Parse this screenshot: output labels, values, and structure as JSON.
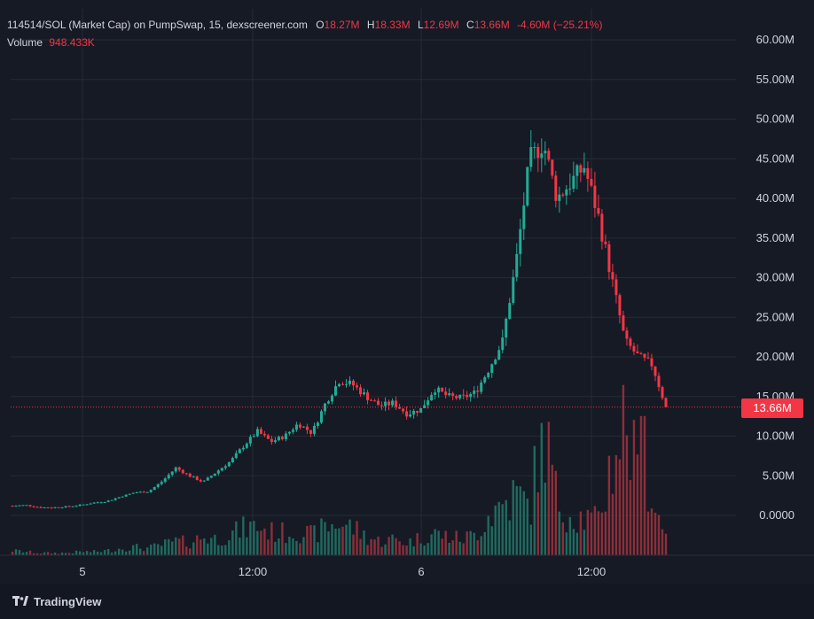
{
  "header": {
    "symbol": "114514/SOL (Market Cap) on PumpSwap, 15, dexscreener.com",
    "open_label": "O",
    "open_value": "18.27M",
    "high_label": "H",
    "high_value": "18.33M",
    "low_label": "L",
    "low_value": "12.69M",
    "close_label": "C",
    "close_value": "13.66M",
    "change": "-4.60M (−25.21%)",
    "volume_label": "Volume",
    "volume_value": "948.433K"
  },
  "last_price_tag": "13.66M",
  "footer": {
    "brand": "TradingView"
  },
  "colors": {
    "background": "#161a25",
    "up": "#22ab94",
    "down": "#f23645",
    "vol_up": "#1f6b60",
    "vol_down": "#8c2f3a",
    "grid": "#262a35",
    "text": "#d1d4dc"
  },
  "chart_data": {
    "type": "candlestick",
    "y_axis_label_position": "right",
    "y_ticks": [
      "60.00M",
      "55.00M",
      "50.00M",
      "45.00M",
      "40.00M",
      "35.00M",
      "30.00M",
      "25.00M",
      "20.00M",
      "15.00M",
      "10.00M",
      "5.00M",
      "0.0000"
    ],
    "y_tick_values": [
      60,
      55,
      50,
      45,
      40,
      35,
      30,
      25,
      20,
      15,
      10,
      5,
      0
    ],
    "y_unit": "M",
    "ylim": [
      0,
      60
    ],
    "x_ticks": [
      "5",
      "12:00",
      "6",
      "12:00"
    ],
    "grid": true,
    "last_close": 13.66,
    "series_close_approx": [
      1.2,
      1.3,
      1.0,
      1.0,
      1.1,
      1.3,
      1.6,
      1.8,
      2.4,
      2.9,
      3.0,
      4.3,
      6.0,
      5.0,
      4.2,
      5.5,
      6.8,
      8.8,
      10.6,
      9.3,
      10.0,
      11.6,
      10.4,
      14.2,
      17.0,
      16.5,
      15.0,
      13.8,
      14.2,
      12.8,
      13.4,
      16.0,
      15.0,
      14.8,
      15.5,
      18.5,
      22.0,
      32.0,
      45.0,
      47.0,
      40.0,
      42.0,
      44.0,
      38.0,
      30.0,
      22.0,
      20.0,
      19.0,
      13.66
    ],
    "volume_approx": [
      0.4,
      0.3,
      0.2,
      0.2,
      0.2,
      0.3,
      0.3,
      0.4,
      0.6,
      0.7,
      0.6,
      0.9,
      1.2,
      1.1,
      1.6,
      1.4,
      1.8,
      2.3,
      2.5,
      2.0,
      1.9,
      2.1,
      1.7,
      2.4,
      2.8,
      2.4,
      1.6,
      1.2,
      1.4,
      1.1,
      1.5,
      1.9,
      1.6,
      1.4,
      1.8,
      3.5,
      4.4,
      5.2,
      4.1,
      11.4,
      4.6,
      3.6,
      3.2,
      2.8,
      8.0,
      12.0,
      6.0,
      4.0,
      2.6
    ]
  }
}
